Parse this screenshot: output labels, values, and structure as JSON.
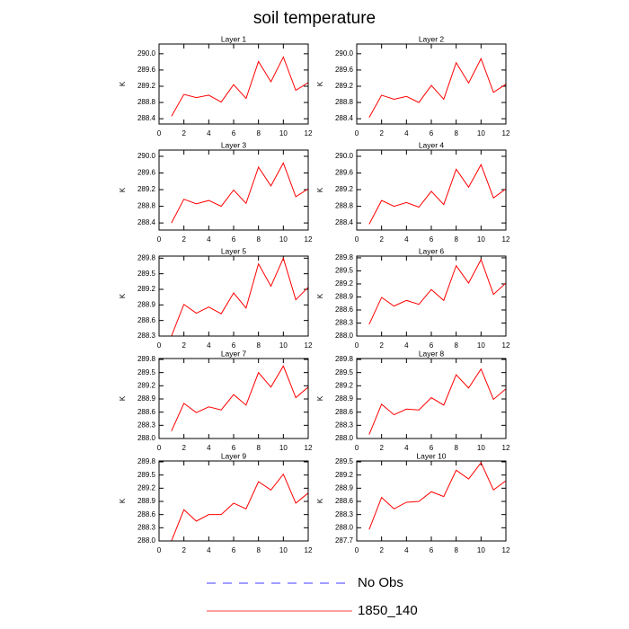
{
  "title": "soil temperature",
  "legend": [
    {
      "name": "No Obs",
      "color": "#0000ff",
      "dash": true
    },
    {
      "name": "1850_140",
      "color": "#ff0000"
    }
  ],
  "chart_data": [
    {
      "type": "line",
      "title": "Layer 1",
      "ylabel": "K",
      "color": "#ff0000",
      "x": [
        1,
        2,
        3,
        4,
        5,
        6,
        7,
        8,
        9,
        10,
        11,
        12
      ],
      "values": [
        288.46,
        289.0,
        288.92,
        288.98,
        288.81,
        289.24,
        288.9,
        289.81,
        289.31,
        289.92,
        289.1,
        289.29
      ],
      "xlim": [
        0,
        12
      ],
      "xticks": [
        0,
        2,
        4,
        6,
        8,
        10,
        12
      ],
      "ylim": [
        288.27,
        290.24
      ],
      "yticks": [
        288.4,
        288.8,
        289.2,
        289.6,
        {
          "value": 290,
          "label": "290.0"
        }
      ]
    },
    {
      "type": "line",
      "title": "Layer 2",
      "ylabel": "K",
      "color": "#ff0000",
      "x": [
        1,
        2,
        3,
        4,
        5,
        6,
        7,
        8,
        9,
        10,
        11,
        12
      ],
      "values": [
        288.43,
        288.98,
        288.88,
        288.95,
        288.8,
        289.22,
        288.88,
        289.78,
        289.28,
        289.88,
        289.05,
        289.25
      ],
      "xlim": [
        0,
        12
      ],
      "xticks": [
        0,
        2,
        4,
        6,
        8,
        10,
        12
      ],
      "ylim": [
        288.27,
        290.24
      ],
      "yticks": [
        288.4,
        288.8,
        289.2,
        289.6,
        {
          "value": 290,
          "label": "290.0"
        }
      ]
    },
    {
      "type": "line",
      "title": "Layer 3",
      "ylabel": "K",
      "color": "#ff0000",
      "x": [
        1,
        2,
        3,
        4,
        5,
        6,
        7,
        8,
        9,
        10,
        11,
        12
      ],
      "values": [
        288.4,
        288.97,
        288.86,
        288.94,
        288.8,
        289.19,
        288.87,
        289.74,
        289.29,
        289.84,
        289.03,
        289.22
      ],
      "xlim": [
        0,
        12
      ],
      "xticks": [
        0,
        2,
        4,
        6,
        8,
        10,
        12
      ],
      "ylim": [
        288.23,
        290.15
      ],
      "yticks": [
        288.4,
        288.8,
        289.2,
        289.6,
        {
          "value": 290,
          "label": "290.0"
        }
      ]
    },
    {
      "type": "line",
      "title": "Layer 4",
      "ylabel": "K",
      "color": "#ff0000",
      "x": [
        1,
        2,
        3,
        4,
        5,
        6,
        7,
        8,
        9,
        10,
        11,
        12
      ],
      "values": [
        288.37,
        288.94,
        288.8,
        288.89,
        288.78,
        289.16,
        288.84,
        289.69,
        289.26,
        289.8,
        289.0,
        289.22
      ],
      "xlim": [
        0,
        12
      ],
      "xticks": [
        0,
        2,
        4,
        6,
        8,
        10,
        12
      ],
      "ylim": [
        288.23,
        290.15
      ],
      "yticks": [
        288.4,
        288.8,
        289.2,
        289.6,
        {
          "value": 290,
          "label": "290.0"
        }
      ]
    },
    {
      "type": "line",
      "title": "Layer 5",
      "ylabel": "K",
      "color": "#ff0000",
      "x": [
        1,
        2,
        3,
        4,
        5,
        6,
        7,
        8,
        9,
        10,
        11,
        12
      ],
      "values": [
        288.3,
        288.91,
        288.74,
        288.86,
        288.73,
        289.13,
        288.84,
        289.69,
        289.26,
        289.8,
        289.0,
        289.24
      ],
      "xlim": [
        0,
        12
      ],
      "xticks": [
        0,
        2,
        4,
        6,
        8,
        10,
        12
      ],
      "ylim": [
        288.3,
        289.84
      ],
      "yticks": [
        288.3,
        288.6,
        288.9,
        289.2,
        289.5,
        289.8
      ]
    },
    {
      "type": "line",
      "title": "Layer 6",
      "ylabel": "K",
      "color": "#ff0000",
      "x": [
        1,
        2,
        3,
        4,
        5,
        6,
        7,
        8,
        9,
        10,
        11,
        12
      ],
      "values": [
        288.27,
        288.89,
        288.69,
        288.82,
        288.73,
        289.07,
        288.82,
        289.62,
        289.22,
        289.76,
        288.96,
        289.22
      ],
      "xlim": [
        0,
        12
      ],
      "xticks": [
        0,
        2,
        4,
        6,
        8,
        10,
        12
      ],
      "ylim": [
        288.0,
        289.84
      ],
      "yticks": [
        {
          "value": 288,
          "label": "288.0"
        },
        288.3,
        288.6,
        288.9,
        289.2,
        289.5,
        289.8
      ]
    },
    {
      "type": "line",
      "title": "Layer 7",
      "ylabel": "K",
      "color": "#ff0000",
      "x": [
        1,
        2,
        3,
        4,
        5,
        6,
        7,
        8,
        9,
        10,
        11,
        12
      ],
      "values": [
        288.17,
        288.8,
        288.59,
        288.72,
        288.65,
        289.0,
        288.76,
        289.5,
        289.17,
        289.65,
        288.93,
        289.17
      ],
      "xlim": [
        0,
        12
      ],
      "xticks": [
        0,
        2,
        4,
        6,
        8,
        10,
        12
      ],
      "ylim": [
        288.0,
        289.82
      ],
      "yticks": [
        {
          "value": 288,
          "label": "288.0"
        },
        288.3,
        288.6,
        288.9,
        289.2,
        289.5,
        289.8
      ]
    },
    {
      "type": "line",
      "title": "Layer 8",
      "ylabel": "K",
      "color": "#ff0000",
      "x": [
        1,
        2,
        3,
        4,
        5,
        6,
        7,
        8,
        9,
        10,
        11,
        12
      ],
      "values": [
        288.09,
        288.78,
        288.54,
        288.67,
        288.65,
        288.93,
        288.76,
        289.45,
        289.15,
        289.58,
        288.89,
        289.13
      ],
      "xlim": [
        0,
        12
      ],
      "xticks": [
        0,
        2,
        4,
        6,
        8,
        10,
        12
      ],
      "ylim": [
        288.0,
        289.82
      ],
      "yticks": [
        {
          "value": 288,
          "label": "288.0"
        },
        288.3,
        288.6,
        288.9,
        289.2,
        289.5,
        289.8
      ]
    },
    {
      "type": "line",
      "title": "Layer 9",
      "ylabel": "K",
      "color": "#ff0000",
      "x": [
        1,
        2,
        3,
        4,
        5,
        6,
        7,
        8,
        9,
        10,
        11,
        12
      ],
      "values": [
        288.0,
        288.71,
        288.45,
        288.6,
        288.6,
        288.86,
        288.73,
        289.35,
        289.16,
        289.52,
        288.86,
        289.09
      ],
      "xlim": [
        0,
        12
      ],
      "xticks": [
        0,
        2,
        4,
        6,
        8,
        10,
        12
      ],
      "ylim": [
        288.0,
        289.82
      ],
      "yticks": [
        {
          "value": 288,
          "label": "288.0"
        },
        288.3,
        288.6,
        288.9,
        289.2,
        289.5,
        289.8
      ]
    },
    {
      "type": "line",
      "title": "Layer 10",
      "ylabel": "K",
      "color": "#ff0000",
      "x": [
        1,
        2,
        3,
        4,
        5,
        6,
        7,
        8,
        9,
        10,
        11,
        12
      ],
      "values": [
        287.96,
        288.69,
        288.43,
        288.58,
        288.6,
        288.82,
        288.71,
        289.31,
        289.11,
        289.48,
        288.86,
        289.07
      ],
      "xlim": [
        0,
        12
      ],
      "xticks": [
        0,
        2,
        4,
        6,
        8,
        10,
        12
      ],
      "ylim": [
        287.7,
        289.52
      ],
      "yticks": [
        287.7,
        {
          "value": 288,
          "label": "288.0"
        },
        288.3,
        288.6,
        288.9,
        289.2,
        289.5
      ]
    }
  ]
}
